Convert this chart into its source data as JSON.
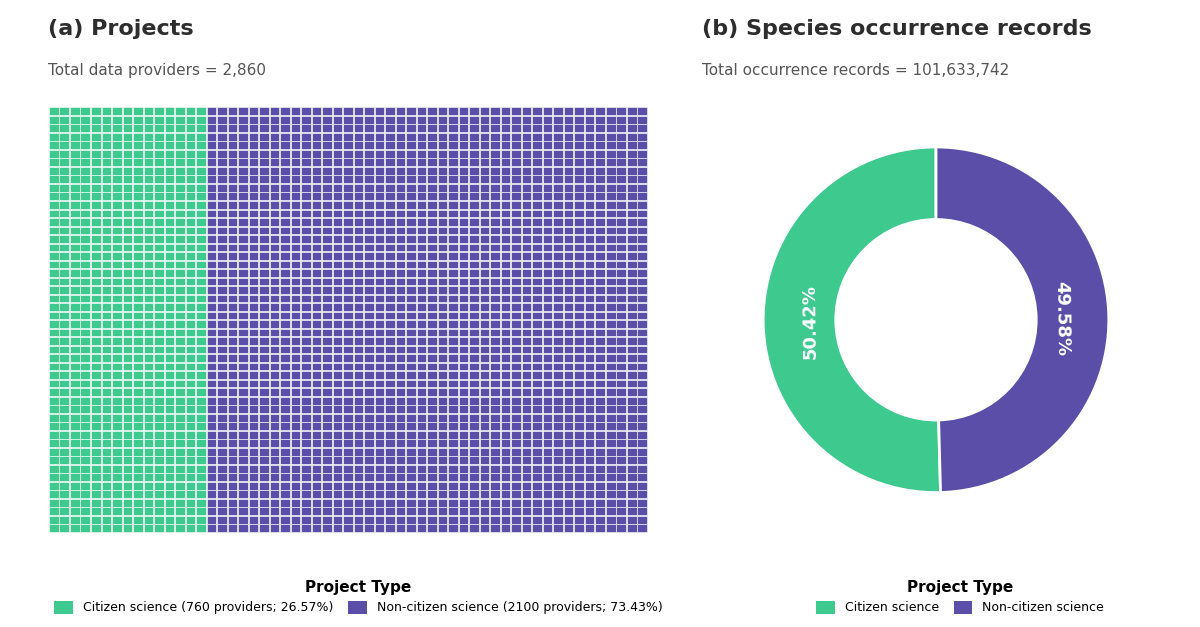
{
  "title_a": "(a) Projects",
  "subtitle_a": "Total data providers = 2,860",
  "title_b": "(b) Species occurrence records",
  "subtitle_b": "Total occurrence records = 101,633,742",
  "citizen_science_count": 760,
  "non_citizen_science_count": 2100,
  "total_providers": 2860,
  "citizen_pct": 26.57,
  "non_citizen_pct": 73.43,
  "donut_citizen_pct": 50.42,
  "donut_non_citizen_pct": 49.58,
  "color_green": "#3ec98f",
  "color_purple": "#5b4ea8",
  "grid_cols": 57,
  "grid_rows": 50,
  "bg_color": "#ffffff",
  "title_fontsize": 16,
  "subtitle_fontsize": 11,
  "legend_label_a1": "Citizen science (760 providers; 26.57%)",
  "legend_label_a2": "Non-citizen science (2100 providers; 73.43%)",
  "legend_label_b1": "Citizen science",
  "legend_label_b2": "Non-citizen science"
}
